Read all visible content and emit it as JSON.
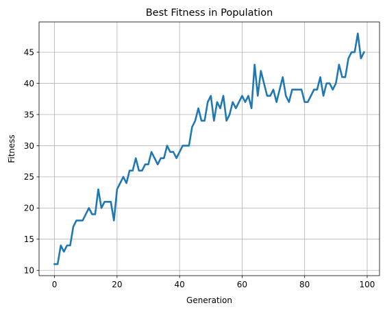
{
  "chart_data": {
    "type": "line",
    "title": "Best Fitness in Population",
    "xlabel": "Generation",
    "ylabel": "Fitness",
    "xlim": [
      -4.95,
      103.95
    ],
    "ylim": [
      9.15,
      49.85
    ],
    "xticks": [
      0,
      20,
      40,
      60,
      80,
      100
    ],
    "yticks": [
      10,
      15,
      20,
      25,
      30,
      35,
      40,
      45
    ],
    "grid": true,
    "series": [
      {
        "color": "#1f77b4",
        "x": [
          0,
          1,
          2,
          3,
          4,
          5,
          6,
          7,
          8,
          9,
          10,
          11,
          12,
          13,
          14,
          15,
          16,
          17,
          18,
          19,
          20,
          21,
          22,
          23,
          24,
          25,
          26,
          27,
          28,
          29,
          30,
          31,
          32,
          33,
          34,
          35,
          36,
          37,
          38,
          39,
          40,
          41,
          42,
          43,
          44,
          45,
          46,
          47,
          48,
          49,
          50,
          51,
          52,
          53,
          54,
          55,
          56,
          57,
          58,
          59,
          60,
          61,
          62,
          63,
          64,
          65,
          66,
          67,
          68,
          69,
          70,
          71,
          72,
          73,
          74,
          75,
          76,
          77,
          78,
          79,
          80,
          81,
          82,
          83,
          84,
          85,
          86,
          87,
          88,
          89,
          90,
          91,
          92,
          93,
          94,
          95,
          96,
          97,
          98,
          99
        ],
        "y": [
          11,
          11,
          14,
          13,
          14,
          14,
          17,
          18,
          18,
          18,
          19,
          20,
          19,
          19,
          23,
          20,
          21,
          21,
          21,
          18,
          23,
          24,
          25,
          24,
          26,
          26,
          28,
          26,
          26,
          27,
          27,
          29,
          28,
          27,
          28,
          28,
          30,
          29,
          29,
          28,
          29,
          30,
          30,
          30,
          33,
          34,
          36,
          34,
          34,
          37,
          38,
          34,
          37,
          36,
          38,
          34,
          35,
          37,
          36,
          37,
          38,
          37,
          38,
          36,
          43,
          38,
          42,
          40,
          38,
          38,
          39,
          37,
          39,
          41,
          38,
          37,
          39,
          39,
          39,
          39,
          37,
          37,
          38,
          39,
          39,
          41,
          38,
          40,
          40,
          39,
          40,
          43,
          41,
          41,
          44,
          45,
          45,
          48,
          44,
          45
        ]
      }
    ]
  }
}
